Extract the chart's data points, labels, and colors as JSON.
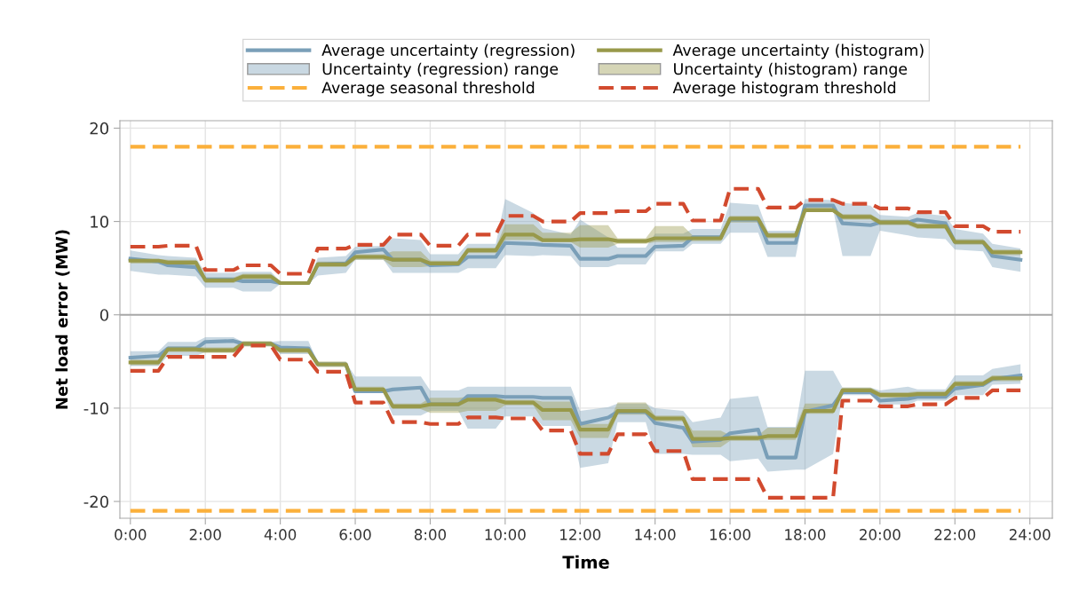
{
  "chart_data": {
    "type": "line",
    "xlabel": "Time",
    "ylabel": "Net load error (MW)",
    "x": [
      0,
      0.75,
      1,
      1.75,
      2,
      2.75,
      3,
      3.75,
      4,
      4.75,
      5,
      5.75,
      6,
      6.75,
      7,
      7.75,
      8,
      8.75,
      9,
      9.75,
      10,
      10.75,
      11,
      11.75,
      12,
      12.75,
      13,
      13.75,
      14,
      14.75,
      15,
      15.75,
      16,
      16.75,
      17,
      17.75,
      18,
      18.75,
      19,
      19.75,
      20,
      20.75,
      21,
      21.75,
      22,
      22.75,
      23,
      23.75
    ],
    "series": [
      {
        "name": "Average uncertainty (regression)",
        "color": "#7a9fb8",
        "values": [
          6.0,
          5.7,
          5.3,
          5.1,
          3.8,
          3.8,
          3.6,
          3.6,
          3.4,
          3.4,
          5.4,
          5.5,
          6.7,
          7.0,
          5.9,
          5.9,
          5.3,
          5.4,
          6.2,
          6.2,
          7.7,
          7.6,
          7.5,
          7.4,
          6.0,
          6.0,
          6.3,
          6.3,
          7.3,
          7.4,
          8.3,
          8.3,
          10.2,
          10.2,
          7.7,
          7.7,
          11.7,
          11.7,
          9.8,
          9.6,
          9.9,
          9.9,
          10.2,
          9.8,
          7.8,
          7.8,
          6.3,
          5.9
        ],
        "lower": [
          4.7,
          4.3,
          4.3,
          4.1,
          2.9,
          2.9,
          2.5,
          2.5,
          3.3,
          3.3,
          4.2,
          4.5,
          5.9,
          5.9,
          4.5,
          4.5,
          4.5,
          4.5,
          5.0,
          5.0,
          6.4,
          6.3,
          6.4,
          6.3,
          5.1,
          5.1,
          5.4,
          5.4,
          6.8,
          6.8,
          7.6,
          7.6,
          8.8,
          8.8,
          6.2,
          6.2,
          11.3,
          11.3,
          6.3,
          6.3,
          9.0,
          8.5,
          8.3,
          8.1,
          7.0,
          6.8,
          5.1,
          4.6
        ],
        "upper": [
          6.9,
          6.4,
          6.3,
          6.1,
          4.5,
          4.5,
          4.6,
          4.6,
          3.6,
          3.6,
          6.1,
          6.3,
          7.3,
          7.4,
          8.2,
          8.0,
          6.5,
          6.5,
          7.6,
          7.6,
          12.4,
          10.9,
          9.3,
          8.6,
          10.2,
          8.3,
          7.2,
          7.2,
          8.7,
          8.7,
          9.2,
          9.2,
          12.0,
          11.8,
          9.0,
          9.0,
          12.4,
          12.3,
          12.0,
          11.7,
          10.7,
          10.5,
          10.9,
          10.6,
          9.2,
          8.7,
          7.6,
          7.1
        ]
      },
      {
        "color": "#7a9fb8",
        "values": [
          -4.6,
          -4.4,
          -3.6,
          -3.6,
          -2.9,
          -2.8,
          -3.1,
          -3.1,
          -3.5,
          -3.6,
          -5.3,
          -5.3,
          -8.2,
          -8.2,
          -8.0,
          -7.8,
          -9.6,
          -9.6,
          -8.7,
          -8.7,
          -8.8,
          -8.8,
          -8.9,
          -8.9,
          -11.7,
          -11.0,
          -10.4,
          -10.4,
          -11.6,
          -12.1,
          -13.6,
          -13.4,
          -12.7,
          -12.3,
          -15.3,
          -15.3,
          -10.4,
          -9.7,
          -8.3,
          -8.3,
          -9.2,
          -9.0,
          -8.8,
          -8.8,
          -7.9,
          -7.5,
          -6.9,
          -6.5
        ],
        "lower": [
          -5.5,
          -5.5,
          -4.4,
          -4.4,
          -4.0,
          -4.0,
          -3.3,
          -3.3,
          -4.2,
          -4.2,
          -5.4,
          -5.4,
          -8.4,
          -8.4,
          -10.8,
          -10.8,
          -10.3,
          -10.3,
          -12.2,
          -12.2,
          -10.9,
          -10.9,
          -11.9,
          -11.9,
          -16.4,
          -15.9,
          -11.5,
          -11.5,
          -14.9,
          -14.9,
          -15.0,
          -15.0,
          -15.7,
          -15.4,
          -16.8,
          -16.6,
          -16.6,
          -14.9,
          -8.6,
          -8.6,
          -9.6,
          -9.6,
          -9.2,
          -9.2,
          -8.6,
          -8.6,
          -7.5,
          -7.4
        ],
        "upper": [
          -3.9,
          -3.9,
          -2.9,
          -2.9,
          -2.4,
          -2.4,
          -2.9,
          -2.9,
          -2.8,
          -2.8,
          -5.1,
          -5.1,
          -6.6,
          -6.6,
          -6.6,
          -6.6,
          -8.1,
          -8.1,
          -7.7,
          -7.7,
          -7.7,
          -7.7,
          -7.7,
          -7.7,
          -10.3,
          -9.9,
          -9.5,
          -9.5,
          -10.0,
          -10.3,
          -11.5,
          -11.0,
          -9.0,
          -8.7,
          -12.0,
          -12.0,
          -6.0,
          -6.0,
          -7.8,
          -7.8,
          -8.1,
          -7.7,
          -8.0,
          -8.0,
          -6.5,
          -6.5,
          -5.8,
          -5.3
        ]
      },
      {
        "name": "Average uncertainty (histogram)",
        "color": "#98994a",
        "values": [
          5.8,
          5.8,
          5.6,
          5.6,
          3.7,
          3.7,
          4.1,
          4.1,
          3.4,
          3.4,
          5.4,
          5.4,
          6.2,
          6.2,
          5.9,
          5.9,
          5.5,
          5.5,
          6.9,
          6.9,
          8.6,
          8.6,
          8.0,
          8.0,
          8.1,
          8.1,
          7.9,
          7.9,
          8.2,
          8.2,
          8.2,
          8.2,
          10.3,
          10.3,
          8.5,
          8.5,
          11.2,
          11.2,
          10.5,
          10.5,
          9.9,
          9.9,
          9.5,
          9.5,
          7.8,
          7.8,
          6.7,
          6.7
        ],
        "lower": [
          5.5,
          5.5,
          5.3,
          5.3,
          3.4,
          3.4,
          3.8,
          3.8,
          3.2,
          3.2,
          5.1,
          5.1,
          5.9,
          5.9,
          5.1,
          5.1,
          5.2,
          5.2,
          6.6,
          6.6,
          8.0,
          8.0,
          7.8,
          7.8,
          7.2,
          7.2,
          7.6,
          7.6,
          7.8,
          7.8,
          7.9,
          7.9,
          9.9,
          9.9,
          8.2,
          8.2,
          11.0,
          11.0,
          10.2,
          10.2,
          9.6,
          9.6,
          9.2,
          9.2,
          7.5,
          7.5,
          6.4,
          6.4
        ],
        "upper": [
          6.0,
          6.0,
          5.9,
          5.9,
          4.0,
          4.0,
          4.4,
          4.4,
          3.6,
          3.6,
          5.7,
          5.7,
          6.5,
          6.5,
          6.8,
          6.8,
          5.8,
          5.8,
          7.2,
          7.2,
          9.7,
          9.7,
          8.8,
          8.8,
          9.6,
          9.6,
          8.2,
          8.2,
          9.5,
          9.5,
          8.5,
          8.5,
          10.6,
          10.6,
          8.8,
          8.8,
          11.5,
          11.5,
          10.8,
          10.8,
          10.2,
          10.2,
          9.8,
          9.8,
          8.1,
          8.1,
          7.0,
          7.0
        ]
      },
      {
        "color": "#98994a",
        "values": [
          -5.1,
          -5.1,
          -3.7,
          -3.7,
          -3.8,
          -3.8,
          -3.1,
          -3.1,
          -3.8,
          -3.8,
          -5.3,
          -5.3,
          -8.0,
          -8.0,
          -9.8,
          -9.8,
          -9.6,
          -9.6,
          -9.1,
          -9.1,
          -9.4,
          -9.4,
          -10.2,
          -10.2,
          -12.3,
          -12.3,
          -10.3,
          -10.3,
          -11.1,
          -11.1,
          -13.3,
          -13.3,
          -13.2,
          -13.2,
          -13.0,
          -13.0,
          -10.3,
          -10.3,
          -8.1,
          -8.1,
          -8.6,
          -8.6,
          -8.5,
          -8.5,
          -7.4,
          -7.4,
          -6.8,
          -6.8
        ],
        "lower": [
          -5.4,
          -5.4,
          -4.0,
          -4.0,
          -4.1,
          -4.1,
          -3.4,
          -3.4,
          -4.1,
          -4.1,
          -5.6,
          -5.6,
          -8.3,
          -8.3,
          -10.1,
          -10.1,
          -10.5,
          -10.5,
          -10.3,
          -10.3,
          -9.7,
          -9.7,
          -11.3,
          -11.3,
          -13.2,
          -13.2,
          -10.7,
          -10.7,
          -11.4,
          -11.4,
          -14.2,
          -14.2,
          -13.5,
          -13.5,
          -13.4,
          -13.4,
          -10.6,
          -10.6,
          -8.4,
          -8.4,
          -8.9,
          -8.9,
          -8.8,
          -8.8,
          -7.7,
          -7.7,
          -7.1,
          -7.1
        ],
        "upper": [
          -4.8,
          -4.8,
          -3.4,
          -3.4,
          -3.5,
          -3.5,
          -2.8,
          -2.8,
          -3.5,
          -3.5,
          -5.0,
          -5.0,
          -7.7,
          -7.7,
          -9.5,
          -9.5,
          -8.9,
          -8.9,
          -8.8,
          -8.8,
          -9.1,
          -9.1,
          -9.3,
          -9.3,
          -11.7,
          -11.7,
          -9.4,
          -9.4,
          -10.8,
          -10.8,
          -12.4,
          -12.4,
          -12.9,
          -12.9,
          -12.1,
          -12.1,
          -9.5,
          -9.5,
          -7.8,
          -7.8,
          -8.3,
          -8.3,
          -8.2,
          -8.2,
          -7.1,
          -7.1,
          -6.5,
          -6.5
        ]
      },
      {
        "name": "Average histogram threshold",
        "color": "#d24a2e",
        "line_style": "dashed",
        "values": [
          7.3,
          7.3,
          7.4,
          7.4,
          4.8,
          4.8,
          5.3,
          5.3,
          4.4,
          4.4,
          7.1,
          7.1,
          7.5,
          7.5,
          8.6,
          8.6,
          7.4,
          7.4,
          8.6,
          8.6,
          10.6,
          10.6,
          10.0,
          10.0,
          10.9,
          10.9,
          11.1,
          11.1,
          11.9,
          11.9,
          10.1,
          10.1,
          13.5,
          13.5,
          11.5,
          11.5,
          12.3,
          12.3,
          11.9,
          11.9,
          11.4,
          11.4,
          11.0,
          11.0,
          9.5,
          9.5,
          8.9,
          8.9
        ]
      },
      {
        "color": "#d24a2e",
        "line_style": "dashed",
        "values": [
          -6.0,
          -6.0,
          -4.5,
          -4.5,
          -4.5,
          -4.5,
          -3.3,
          -3.3,
          -4.8,
          -4.8,
          -6.1,
          -6.1,
          -9.4,
          -9.4,
          -11.5,
          -11.5,
          -11.7,
          -11.7,
          -11.0,
          -11.0,
          -11.1,
          -11.1,
          -12.4,
          -12.4,
          -14.9,
          -14.9,
          -12.8,
          -12.8,
          -14.6,
          -14.6,
          -17.6,
          -17.6,
          -17.6,
          -17.6,
          -19.6,
          -19.6,
          -19.6,
          -19.6,
          -9.2,
          -9.2,
          -9.8,
          -9.8,
          -9.6,
          -9.6,
          -8.9,
          -8.9,
          -8.1,
          -8.1
        ]
      }
    ],
    "annotations": [
      "Uncertainty (regression) range",
      "Uncertainty (histogram) range"
    ],
    "ref_lines": [
      {
        "axis": "y",
        "value": 0,
        "color": "#a8a8a8",
        "line_style": "solid"
      },
      {
        "axis": "y",
        "value": 18,
        "label": "Average seasonal threshold",
        "color": "#fbb03b",
        "line_style": "dashed"
      },
      {
        "axis": "y",
        "value": -21,
        "color": "#fbb03b",
        "line_style": "dashed"
      }
    ],
    "xlim": [
      -0.28,
      24.6
    ],
    "ylim": [
      -21.8,
      20.8
    ],
    "xticks": [
      {
        "value": 0,
        "label": "0:00"
      },
      {
        "value": 2,
        "label": "2:00"
      },
      {
        "value": 4,
        "label": "4:00"
      },
      {
        "value": 6,
        "label": "6:00"
      },
      {
        "value": 8,
        "label": "8:00"
      },
      {
        "value": 10,
        "label": "10:00"
      },
      {
        "value": 12,
        "label": "12:00"
      },
      {
        "value": 14,
        "label": "14:00"
      },
      {
        "value": 16,
        "label": "16:00"
      },
      {
        "value": 18,
        "label": "18:00"
      },
      {
        "value": 20,
        "label": "20:00"
      },
      {
        "value": 22,
        "label": "22:00"
      },
      {
        "value": 24,
        "label": "24:00"
      }
    ],
    "yticks": [
      -20,
      -10,
      0,
      10,
      20
    ],
    "grid": true,
    "legend": "top",
    "line_style": "solid",
    "marker": "none"
  }
}
